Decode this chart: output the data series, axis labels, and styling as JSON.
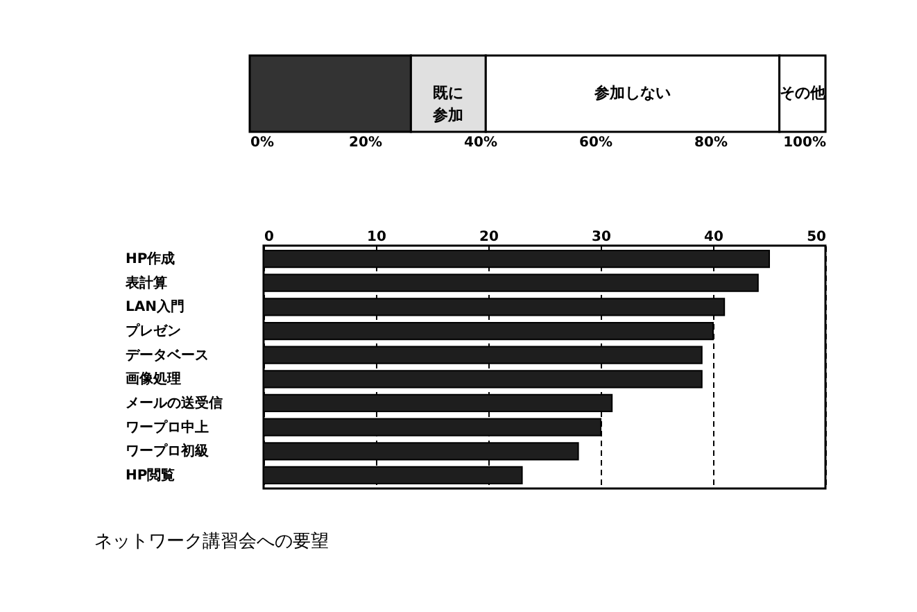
{
  "chart_data": [
    {
      "type": "bar",
      "orientation": "horizontal",
      "stacked": true,
      "categories": [
        null
      ],
      "legend": false,
      "series": [
        {
          "color": "#333333",
          "values": [
            28
          ]
        },
        {
          "name": "既に参加",
          "color": "#e0e0e0",
          "values": [
            13
          ]
        },
        {
          "name": "参加しない",
          "color": "#ffffff",
          "values": [
            51
          ]
        },
        {
          "name": "その他",
          "color": "#ffffff",
          "values": [
            8
          ]
        }
      ],
      "xlim": [
        0,
        100
      ],
      "xticks": [
        {
          "value": 0,
          "label": "0%"
        },
        {
          "value": 20,
          "label": "20%"
        },
        {
          "value": 40,
          "label": "40%"
        },
        {
          "value": 60,
          "label": "60%"
        },
        {
          "value": 80,
          "label": "80%"
        },
        {
          "value": 100,
          "label": "100%"
        }
      ]
    },
    {
      "type": "bar",
      "orientation": "horizontal",
      "title": "ネットワーク講習会への要望",
      "categories": [
        "HP作成",
        "表計算",
        "LAN入門",
        "プレゼン",
        "データベース",
        "画像処理",
        "メールの送受信",
        "ワープロ中上",
        "ワープロ初級",
        "HP閲覧"
      ],
      "values": [
        45,
        44,
        41,
        40,
        39,
        39,
        31,
        30,
        28,
        23
      ],
      "color": "#1e1e1e",
      "xlim": [
        0,
        50
      ],
      "xticks": [
        0,
        10,
        20,
        30,
        40,
        50
      ],
      "grid": "x",
      "line_style": "dashed"
    }
  ]
}
